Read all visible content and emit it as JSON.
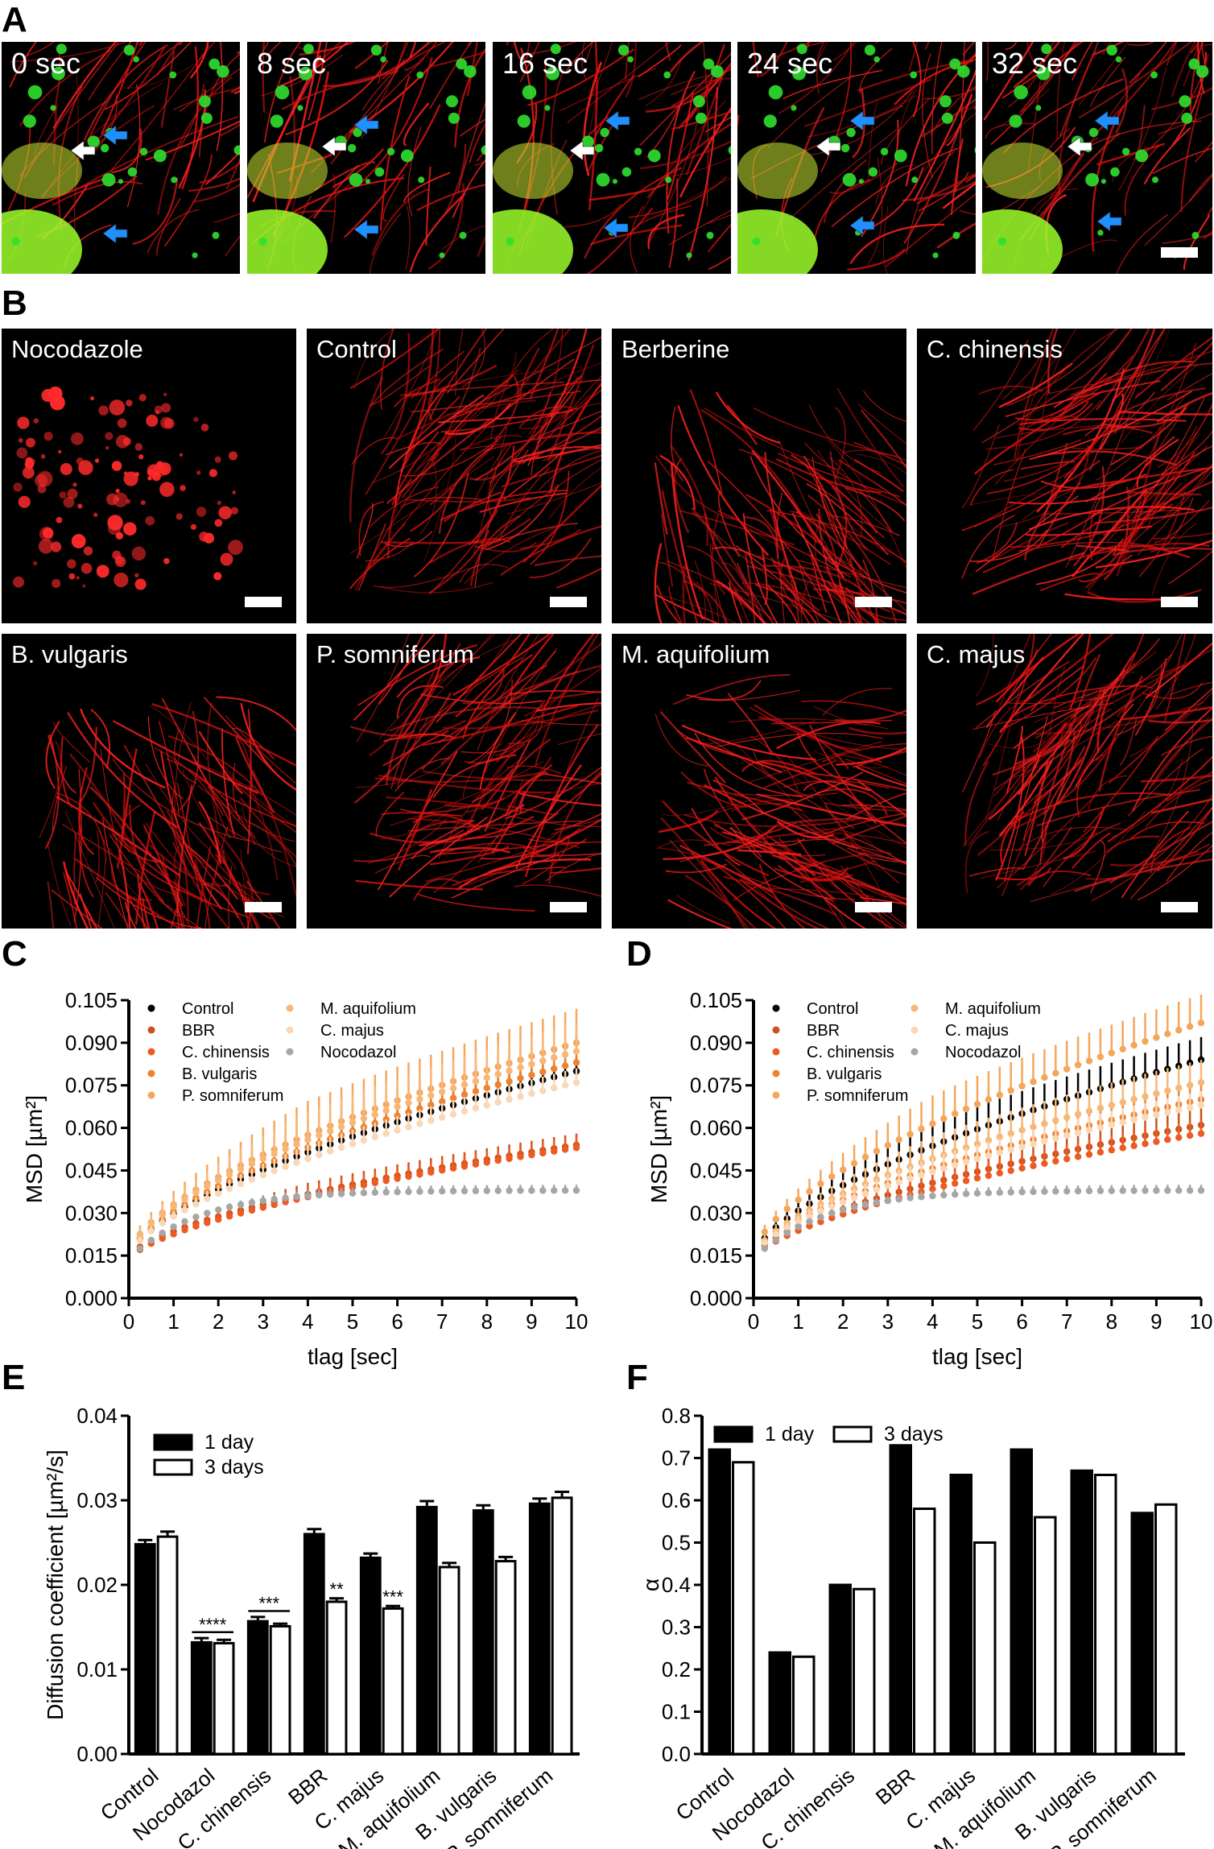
{
  "panels": {
    "A": "A",
    "B": "B",
    "C": "C",
    "D": "D",
    "E": "E",
    "F": "F"
  },
  "panel_a": {
    "frames": [
      "0 sec",
      "8 sec",
      "16 sec",
      "24 sec",
      "32 sec"
    ],
    "arrow_colors": {
      "white": "#ffffff",
      "blue": "#1e90ff"
    }
  },
  "panel_b": {
    "tiles": [
      "Nocodazole",
      "Control",
      "Berberine",
      "C. chinensis",
      "B. vulgaris",
      "P. somniferum",
      "M. aquifolium",
      "C. majus"
    ]
  },
  "colors": {
    "Control": "#000000",
    "BBR": "#c8541a",
    "C. chinensis": "#ee5a24",
    "B. vulgaris": "#f0822d",
    "P. somniferum": "#f5a65b",
    "M. aquifolium": "#f7b777",
    "C. majus": "#fad7b5",
    "Nocodazol": "#a6a6a6"
  },
  "chart_data": [
    {
      "panel": "C",
      "type": "line",
      "ylabel": "MSD [µm²]",
      "xlabel": "tlag [sec]",
      "xlim": [
        0,
        10
      ],
      "ylim": [
        0,
        0.105
      ],
      "xticks": [
        0,
        1,
        2,
        3,
        4,
        5,
        6,
        7,
        8,
        9,
        10
      ],
      "yticks": [
        "0.000",
        "0.015",
        "0.030",
        "0.045",
        "0.060",
        "0.075",
        "0.090",
        "0.105"
      ],
      "legend": [
        "Control",
        "BBR",
        "C. chinensis",
        "B. vulgaris",
        "P. somniferum",
        "M. aquifolium",
        "C. majus",
        "Nocodazol"
      ],
      "series": [
        {
          "name": "Control",
          "start": 0.014,
          "end": 0.08,
          "err": 0.005
        },
        {
          "name": "BBR",
          "start": 0.014,
          "end": 0.054,
          "err": 0.004
        },
        {
          "name": "C. chinensis",
          "start": 0.013,
          "end": 0.053,
          "err": 0.004
        },
        {
          "name": "B. vulgaris",
          "start": 0.014,
          "end": 0.083,
          "err": 0.01
        },
        {
          "name": "P. somniferum",
          "start": 0.015,
          "end": 0.09,
          "err": 0.012
        },
        {
          "name": "M. aquifolium",
          "start": 0.015,
          "end": 0.087,
          "err": 0.01
        },
        {
          "name": "C. majus",
          "start": 0.014,
          "end": 0.076,
          "err": 0.005
        },
        {
          "name": "Nocodazol",
          "start": 0.014,
          "end": 0.038,
          "err": 0.002,
          "plateau": true
        }
      ]
    },
    {
      "panel": "D",
      "type": "line",
      "ylabel": "MSD [µm²]",
      "xlabel": "tlag [sec]",
      "xlim": [
        0,
        10
      ],
      "ylim": [
        0,
        0.105
      ],
      "xticks": [
        0,
        1,
        2,
        3,
        4,
        5,
        6,
        7,
        8,
        9,
        10
      ],
      "yticks": [
        "0.000",
        "0.015",
        "0.030",
        "0.045",
        "0.060",
        "0.075",
        "0.090",
        "0.105"
      ],
      "legend": [
        "Control",
        "BBR",
        "C. chinensis",
        "B. vulgaris",
        "P. somniferum",
        "M. aquifolium",
        "C. majus",
        "Nocodazol"
      ],
      "series": [
        {
          "name": "Control",
          "start": 0.014,
          "end": 0.084,
          "err": 0.008
        },
        {
          "name": "BBR",
          "start": 0.014,
          "end": 0.061,
          "err": 0.006
        },
        {
          "name": "C. chinensis",
          "start": 0.013,
          "end": 0.058,
          "err": 0.005
        },
        {
          "name": "B. vulgaris",
          "start": 0.014,
          "end": 0.07,
          "err": 0.007
        },
        {
          "name": "P. somniferum",
          "start": 0.015,
          "end": 0.097,
          "err": 0.01
        },
        {
          "name": "M. aquifolium",
          "start": 0.014,
          "end": 0.076,
          "err": 0.008
        },
        {
          "name": "C. majus",
          "start": 0.014,
          "end": 0.068,
          "err": 0.005
        },
        {
          "name": "Nocodazol",
          "start": 0.014,
          "end": 0.038,
          "err": 0.002,
          "plateau": true
        }
      ]
    },
    {
      "panel": "E",
      "type": "bar",
      "ylabel": "Diffusion coefficient [µm²/s]",
      "ylim": [
        0,
        0.04
      ],
      "yticks": [
        "0.00",
        "0.01",
        "0.02",
        "0.03",
        "0.04"
      ],
      "categories": [
        "Control",
        "Nocodazol",
        "C. chinensis",
        "BBR",
        "C. majus",
        "M. aquifolium",
        "B. vulgaris",
        "P. somniferum"
      ],
      "series": [
        {
          "name": "1 day",
          "values": [
            0.0248,
            0.0132,
            0.0157,
            0.026,
            0.0232,
            0.0292,
            0.0288,
            0.0296
          ],
          "errors": [
            0.0005,
            0.0005,
            0.0005,
            0.0006,
            0.0005,
            0.0007,
            0.0006,
            0.0006
          ]
        },
        {
          "name": "3 days",
          "values": [
            0.0257,
            0.0131,
            0.0151,
            0.018,
            0.0172,
            0.0221,
            0.0228,
            0.0303
          ],
          "errors": [
            0.0006,
            0.0004,
            0.0003,
            0.0004,
            0.0003,
            0.0005,
            0.0005,
            0.0007
          ]
        }
      ],
      "significance": [
        {
          "category": "Nocodazol",
          "label": "****",
          "bracket": true
        },
        {
          "category": "C. chinensis",
          "label": "***",
          "bracket": true
        },
        {
          "category": "BBR",
          "label": "**",
          "bracket": false
        },
        {
          "category": "C. majus",
          "label": "***",
          "bracket": false
        }
      ],
      "legend": [
        "1 day",
        "3 days"
      ]
    },
    {
      "panel": "F",
      "type": "bar",
      "ylabel": "α",
      "ylim": [
        0,
        0.8
      ],
      "yticks": [
        "0.0",
        "0.1",
        "0.2",
        "0.3",
        "0.4",
        "0.5",
        "0.6",
        "0.7",
        "0.8"
      ],
      "categories": [
        "Control",
        "Nocodazol",
        "C. chinensis",
        "BBR",
        "C. majus",
        "M. aquifolium",
        "B. vulgaris",
        "P. somniferum"
      ],
      "series": [
        {
          "name": "1 day",
          "values": [
            0.72,
            0.24,
            0.4,
            0.73,
            0.66,
            0.72,
            0.67,
            0.57
          ]
        },
        {
          "name": "3 days",
          "values": [
            0.69,
            0.23,
            0.39,
            0.58,
            0.5,
            0.56,
            0.66,
            0.59
          ]
        }
      ],
      "legend": [
        "1 day",
        "3 days"
      ]
    }
  ]
}
